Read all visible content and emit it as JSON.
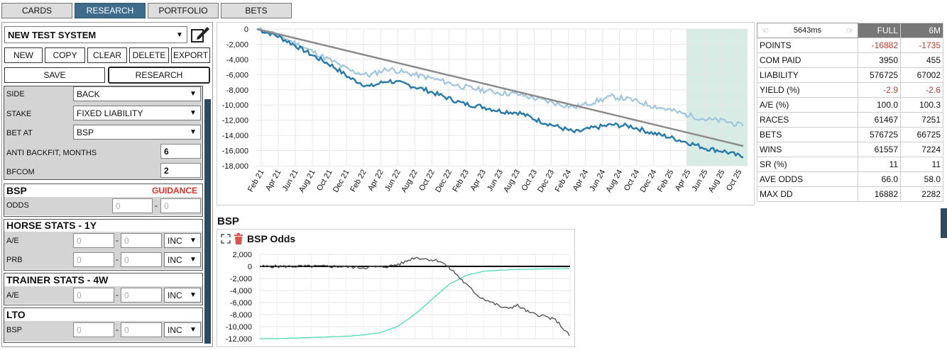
{
  "nav": {
    "tabs": [
      {
        "label": "CARDS",
        "active": false
      },
      {
        "label": "RESEARCH",
        "active": true
      },
      {
        "label": "PORTFOLIO",
        "active": false
      },
      {
        "label": "BETS",
        "active": false
      }
    ]
  },
  "system": {
    "name": "NEW TEST SYSTEM"
  },
  "actions": {
    "new": "NEW",
    "copy": "COPY",
    "clear": "CLEAR",
    "delete": "DELETE",
    "export": "EXPORT",
    "save": "SAVE",
    "research": "RESEARCH"
  },
  "settings": {
    "side_label": "SIDE",
    "side_value": "BACK",
    "stake_label": "STAKE",
    "stake_value": "FIXED LIABILITY",
    "betat_label": "BET AT",
    "betat_value": "BSP",
    "antibackfit_label": "ANTI BACKFIT, MONTHS",
    "antibackfit_value": "6",
    "bfcom_label": "BFCOM",
    "bfcom_value": "2"
  },
  "bsp_section": {
    "title": "BSP",
    "guidance": "GUIDANCE",
    "odds_label": "ODDS",
    "from": "0",
    "dash": "-",
    "to": "0"
  },
  "horse_stats": {
    "title": "HORSE STATS - 1Y",
    "ae_label": "A/E",
    "prb_label": "PRB",
    "ae_from": "0",
    "ae_to": "0",
    "prb_from": "0",
    "prb_to": "0",
    "inc": "INC",
    "dash": "-"
  },
  "trainer_stats": {
    "title": "TRAINER STATS - 4W",
    "ae_label": "A/E",
    "ae_from": "0",
    "ae_to": "0",
    "inc": "INC",
    "dash": "-"
  },
  "lto": {
    "title": "LTO",
    "bsp_label": "BSP",
    "from": "0",
    "to": "0",
    "inc": "INC",
    "dash": "-"
  },
  "stats": {
    "timer": "5643ms",
    "headers": [
      "FULL",
      "6M"
    ],
    "rows": [
      {
        "label": "POINTS",
        "full": "-16882",
        "m6": "-1735",
        "neg": true
      },
      {
        "label": "COM PAID",
        "full": "3950",
        "m6": "455",
        "neg": false
      },
      {
        "label": "LIABILITY",
        "full": "576725",
        "m6": "67002",
        "neg": false
      },
      {
        "label": "YIELD (%)",
        "full": "-2.9",
        "m6": "-2.6",
        "neg": true
      },
      {
        "label": "A/E (%)",
        "full": "100.0",
        "m6": "100.3",
        "neg": false
      },
      {
        "label": "RACES",
        "full": "61467",
        "m6": "7251",
        "neg": false
      },
      {
        "label": "BETS",
        "full": "576725",
        "m6": "66725",
        "neg": false
      },
      {
        "label": "WINS",
        "full": "61557",
        "m6": "7224",
        "neg": false
      },
      {
        "label": "SR (%)",
        "full": "11",
        "m6": "11",
        "neg": false
      },
      {
        "label": "AVE ODDS",
        "full": "66.0",
        "m6": "58.0",
        "neg": false
      },
      {
        "label": "MAX DD",
        "full": "16882",
        "m6": "2282",
        "neg": false
      }
    ]
  },
  "lower": {
    "section_title": "BSP",
    "chart_title": "BSP Odds"
  },
  "chart_data": [
    {
      "type": "line",
      "ylim": [
        -18000,
        0
      ],
      "yticks": [
        "0",
        "-2,000",
        "-4,000",
        "-6,000",
        "-8,000",
        "-10,000",
        "-12,000",
        "-14,000",
        "-16,000",
        "-18,000"
      ],
      "xticks": [
        "Feb 21",
        "Apr 21",
        "Jun 21",
        "Aug 21",
        "Oct 21",
        "Dec 21",
        "Feb 22",
        "Apr 22",
        "Jun 22",
        "Aug 22",
        "Oct 22",
        "Dec 22",
        "Feb 23",
        "Apr 23",
        "Jun 23",
        "Aug 23",
        "Oct 23",
        "Dec 23",
        "Feb 24",
        "Apr 24",
        "Jun 24",
        "Aug 24",
        "Oct 24",
        "Dec 24",
        "Feb 25",
        "Apr 25",
        "Jun 25",
        "Aug 25",
        "Oct 25"
      ],
      "highlight_range": [
        "Apr 25",
        "Nov 25"
      ],
      "colors": {
        "series1": "#2a7bab",
        "series2": "#9ec6de",
        "trend": "#8c8c8c",
        "highlight": "#b7dccd"
      },
      "series": [
        {
          "values": [
            0,
            -800,
            -2100,
            -3500,
            -4800,
            -6500,
            -7600,
            -6800,
            -7300,
            -8000,
            -8900,
            -9800,
            -10200,
            -10800,
            -11000,
            -12000,
            -12800,
            -13600,
            -13000,
            -12600,
            -12800,
            -13600,
            -14200,
            -14900,
            -15700,
            -16100,
            -16882
          ]
        },
        {
          "values": [
            0,
            -700,
            -1800,
            -3000,
            -4200,
            -5500,
            -6100,
            -5200,
            -5800,
            -6300,
            -6900,
            -7600,
            -8000,
            -8400,
            -8600,
            -9200,
            -9800,
            -10300,
            -9600,
            -8900,
            -9300,
            -10000,
            -10600,
            -11300,
            -11900,
            -12100,
            -12800
          ]
        },
        {
          "values": [
            0,
            -15400
          ]
        }
      ]
    },
    {
      "type": "line",
      "title": "BSP Odds",
      "ylim": [
        -12000,
        2000
      ],
      "yticks": [
        "2,000",
        "0",
        "-2,000",
        "-4,000",
        "-6,000",
        "-8,000",
        "-10,000",
        "-12,000"
      ],
      "colors": {
        "series1": "#555555",
        "series2": "#3fd9b3",
        "zero": "#000000"
      },
      "series": [
        {
          "values": [
            0,
            0,
            0,
            0,
            0,
            0,
            0,
            -100,
            -200,
            -100,
            0,
            500,
            1500,
            1200,
            900,
            -800,
            -3000,
            -5000,
            -6000,
            -7000,
            -6500,
            -7800,
            -8200,
            -9000,
            -11500
          ]
        },
        {
          "values": [
            -12000,
            -12000,
            -11900,
            -11800,
            -11700,
            -11600,
            -11400,
            -11000,
            -10000,
            -8000,
            -5500,
            -3000,
            -1500,
            -800,
            -600,
            -500,
            -450,
            -400,
            -380
          ]
        }
      ]
    }
  ]
}
